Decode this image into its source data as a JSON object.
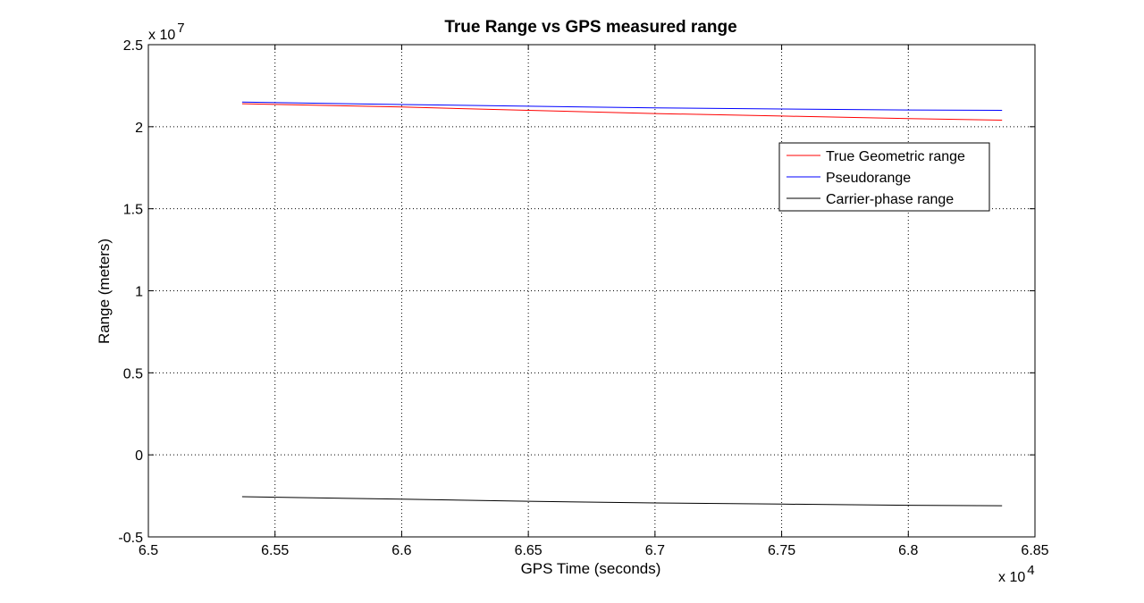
{
  "chart_data": {
    "type": "line",
    "title": "True Range vs GPS measured range",
    "xlabel": "GPS Time (seconds)",
    "ylabel": "Range (meters)",
    "x_multiplier": "x 10",
    "x_exponent": "4",
    "y_multiplier": "x 10",
    "y_exponent": "7",
    "xlim": [
      6.5,
      6.85
    ],
    "ylim": [
      -0.5,
      2.5
    ],
    "xticks": [
      6.5,
      6.55,
      6.6,
      6.65,
      6.7,
      6.75,
      6.8,
      6.85
    ],
    "xtick_labels": [
      "6.5",
      "6.55",
      "6.6",
      "6.65",
      "6.7",
      "6.75",
      "6.8",
      "6.85"
    ],
    "yticks": [
      -0.5,
      0,
      0.5,
      1,
      1.5,
      2,
      2.5
    ],
    "ytick_labels": [
      "-0.5",
      "0",
      "0.5",
      "1",
      "1.5",
      "2",
      "2.5"
    ],
    "grid": true,
    "legend_position": "upper-right",
    "series": [
      {
        "name": "True Geometric range",
        "color": "#ff0000",
        "x": [
          6.537,
          6.6,
          6.65,
          6.7,
          6.75,
          6.8,
          6.837
        ],
        "y": [
          2.14,
          2.12,
          2.1,
          2.08,
          2.065,
          2.05,
          2.04
        ]
      },
      {
        "name": "Pseudorange",
        "color": "#0000ff",
        "x": [
          6.537,
          6.6,
          6.65,
          6.7,
          6.75,
          6.8,
          6.837
        ],
        "y": [
          2.15,
          2.135,
          2.125,
          2.115,
          2.108,
          2.102,
          2.1
        ]
      },
      {
        "name": "Carrier-phase range",
        "color": "#000000",
        "x": [
          6.537,
          6.6,
          6.65,
          6.7,
          6.75,
          6.8,
          6.837
        ],
        "y": [
          -0.255,
          -0.27,
          -0.283,
          -0.293,
          -0.3,
          -0.307,
          -0.31
        ]
      }
    ]
  }
}
